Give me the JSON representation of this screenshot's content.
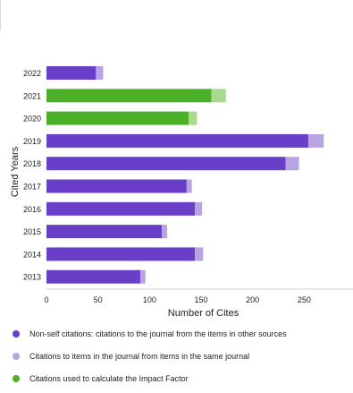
{
  "chart_data": {
    "type": "bar",
    "orientation": "horizontal",
    "stacked": true,
    "title": "",
    "xlabel": "Number of Cites",
    "ylabel": "Cited Years",
    "xlim": [
      0,
      300
    ],
    "xticks": [
      0,
      50,
      100,
      150,
      200,
      250
    ],
    "categories": [
      "2022",
      "2021",
      "2020",
      "2019",
      "2018",
      "2017",
      "2016",
      "2015",
      "2014",
      "2013"
    ],
    "series": [
      {
        "name": "Non-self citations: citations to the journal from the items in other sources",
        "color": "#6a3fc8",
        "values": [
          48,
          0,
          0,
          254,
          232,
          136,
          144,
          112,
          144,
          91
        ]
      },
      {
        "name": "Citations to items in the journal from items in the same journal",
        "color": "#b8a3e3",
        "values": [
          7,
          14,
          8,
          15,
          13,
          5,
          7,
          5,
          8,
          5
        ]
      },
      {
        "name": "Citations used to calculate the Impact Factor",
        "color": "#4caf28",
        "values": [
          0,
          160,
          138,
          0,
          0,
          0,
          0,
          0,
          0,
          0
        ]
      }
    ],
    "highlight_color_light": "#a9d98b",
    "grid": false,
    "legend_position": "bottom"
  }
}
